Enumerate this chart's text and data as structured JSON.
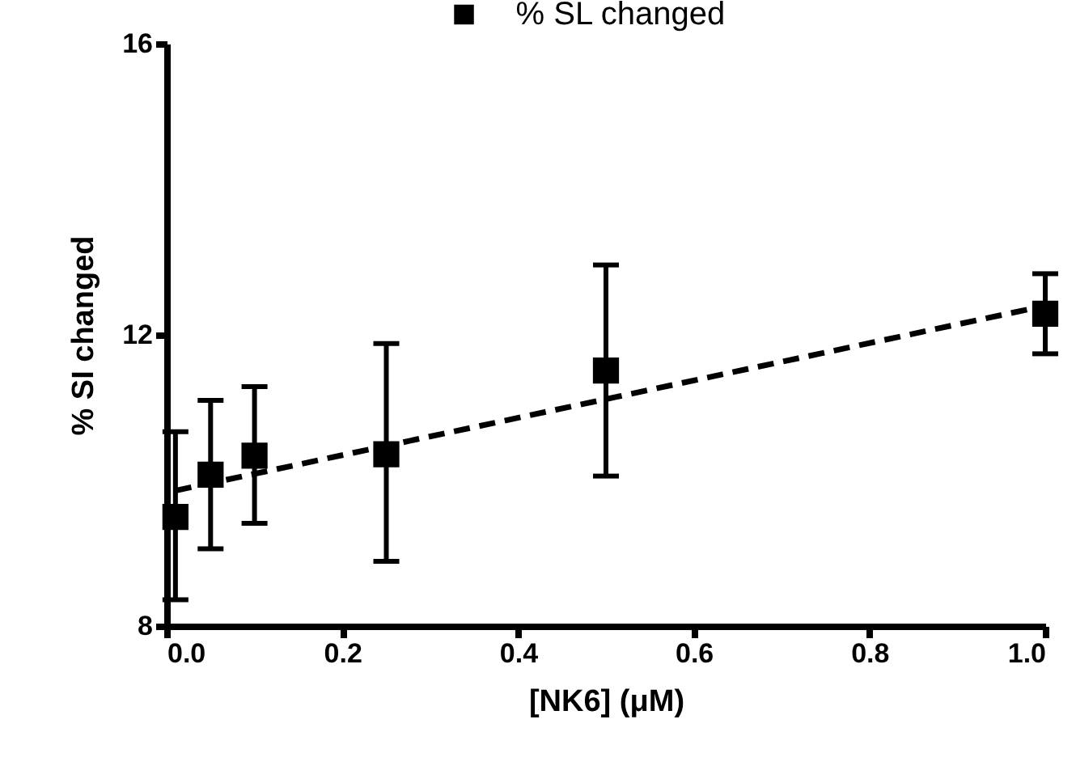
{
  "chart_data": {
    "type": "scatter",
    "xlabel": "[NK6] (μM)",
    "ylabel": "% SI changed",
    "xlim": [
      0,
      1.0
    ],
    "ylim": [
      8,
      16
    ],
    "xticks": [
      {
        "value": 0,
        "label": "0.0"
      },
      {
        "value": 0.2,
        "label": "0.2"
      },
      {
        "value": 0.4,
        "label": "0.4"
      },
      {
        "value": 0.6,
        "label": "0.6"
      },
      {
        "value": 0.8,
        "label": "0.8"
      },
      {
        "value": 1.0,
        "label": "1.0"
      }
    ],
    "yticks": [
      8,
      12,
      16
    ],
    "legend": "top",
    "series": [
      {
        "name": "% SL changed",
        "marker": "square",
        "color": "#000000",
        "x": [
          0.01,
          0.05,
          0.1,
          0.25,
          0.5,
          1.0
        ],
        "values": [
          9.5,
          10.08,
          10.34,
          10.36,
          11.51,
          12.29
        ],
        "errors": [
          [
            8.36,
            10.67
          ],
          [
            9.06,
            11.1
          ],
          [
            9.41,
            11.29
          ],
          [
            8.89,
            11.88
          ],
          [
            10.06,
            12.96
          ],
          [
            11.74,
            12.84
          ]
        ]
      },
      {
        "type": "line",
        "marker": "none",
        "color": "#000000",
        "line_style": "dashed",
        "x": [
          0.01,
          1.0
        ],
        "values": [
          9.86,
          12.4
        ]
      }
    ]
  }
}
